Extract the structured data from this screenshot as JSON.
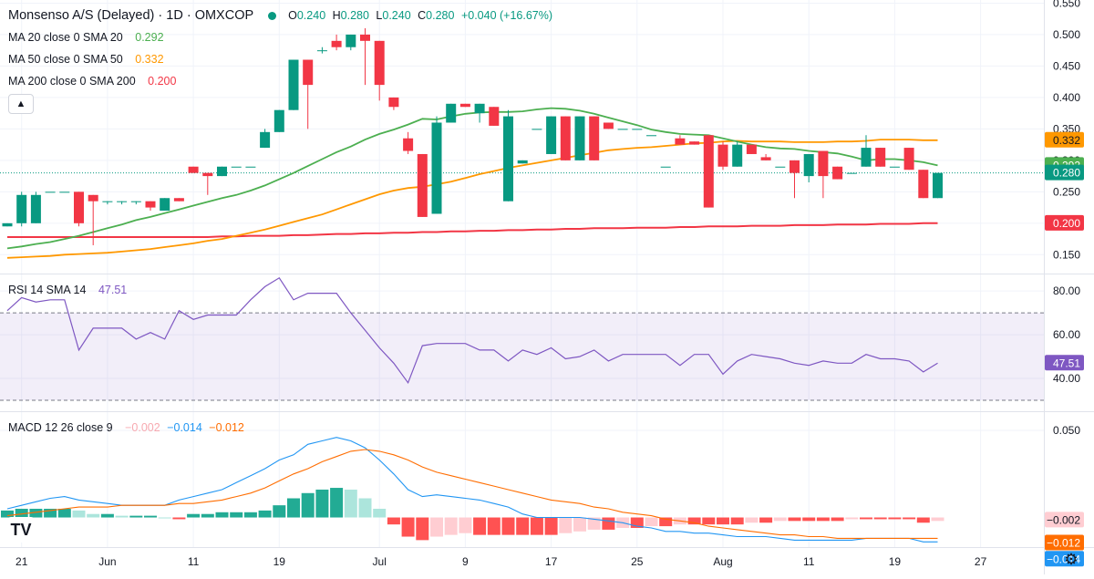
{
  "symbol": {
    "title": "Monsenso A/S (Delayed) · 1D · OMXCOP",
    "status_color": "#089981",
    "o_label": "O",
    "o": "0.240",
    "h_label": "H",
    "h": "0.280",
    "l_label": "L",
    "l": "0.240",
    "c_label": "C",
    "c": "0.280",
    "change": "+0.040 (+16.67%)"
  },
  "ma_legend": [
    {
      "label": "MA 20 close 0 SMA 20",
      "value": "0.292",
      "color": "#4caf50"
    },
    {
      "label": "MA 50 close 0 SMA 50",
      "value": "0.332",
      "color": "#ff9800"
    },
    {
      "label": "MA 200 close 0 SMA 200",
      "value": "0.200",
      "color": "#f23645"
    }
  ],
  "rsi_legend": {
    "label": "RSI 14 SMA 14",
    "value": "47.51",
    "color": "#7e57c2"
  },
  "macd_legend": {
    "label": "MACD 12 26 close 9",
    "hist": "−0.002",
    "macd": "−0.014",
    "signal": "−0.012",
    "hist_color": "#f7a9b0",
    "macd_color": "#2196f3",
    "signal_color": "#ff6d00"
  },
  "collapse_icon": "chevron-up-icon",
  "logo_text": "TV",
  "settings_icon": "gear-icon",
  "colors": {
    "up": "#089981",
    "down": "#f23645",
    "ma20": "#4caf50",
    "ma50": "#ff9800",
    "ma200": "#f23645",
    "rsi": "#7e57c2",
    "macd": "#2196f3",
    "signal": "#ff6d00",
    "hist_up_strong": "#22ab94",
    "hist_up_weak": "#ace5dc",
    "hist_down_strong": "#ff5252",
    "hist_down_weak": "#ffcdd2"
  },
  "chart_data": {
    "type": "candlestick",
    "x_ticks": [
      {
        "i": 1,
        "label": "21"
      },
      {
        "i": 7,
        "label": "Jun"
      },
      {
        "i": 13,
        "label": "11"
      },
      {
        "i": 19,
        "label": "19"
      },
      {
        "i": 26,
        "label": "Jul"
      },
      {
        "i": 32,
        "label": "9"
      },
      {
        "i": 38,
        "label": "17"
      },
      {
        "i": 44,
        "label": "25"
      },
      {
        "i": 50,
        "label": "Aug"
      },
      {
        "i": 56,
        "label": "11"
      },
      {
        "i": 62,
        "label": "19"
      },
      {
        "i": 68,
        "label": "27"
      }
    ],
    "price_axis": {
      "ticks": [
        "0.550",
        "0.500",
        "0.450",
        "0.400",
        "0.350",
        "0.300",
        "0.250",
        "0.200",
        "0.150"
      ],
      "min": 0.12,
      "max": 0.555
    },
    "candles": [
      [
        0.195,
        0.2,
        0.195,
        0.2
      ],
      [
        0.2,
        0.25,
        0.195,
        0.245
      ],
      [
        0.2,
        0.25,
        0.2,
        0.245
      ],
      [
        0.25,
        0.25,
        0.25,
        0.25
      ],
      [
        0.25,
        0.25,
        0.25,
        0.25
      ],
      [
        0.25,
        0.25,
        0.195,
        0.2
      ],
      [
        0.245,
        0.245,
        0.165,
        0.235
      ],
      [
        0.235,
        0.235,
        0.23,
        0.235
      ],
      [
        0.235,
        0.235,
        0.23,
        0.235
      ],
      [
        0.235,
        0.235,
        0.23,
        0.235
      ],
      [
        0.235,
        0.235,
        0.22,
        0.225
      ],
      [
        0.22,
        0.24,
        0.22,
        0.24
      ],
      [
        0.24,
        0.24,
        0.235,
        0.235
      ],
      [
        0.29,
        0.29,
        0.28,
        0.28
      ],
      [
        0.28,
        0.28,
        0.245,
        0.275
      ],
      [
        0.275,
        0.29,
        0.275,
        0.29
      ],
      [
        0.29,
        0.29,
        0.29,
        0.29
      ],
      [
        0.29,
        0.29,
        0.29,
        0.29
      ],
      [
        0.32,
        0.35,
        0.32,
        0.345
      ],
      [
        0.345,
        0.38,
        0.345,
        0.38
      ],
      [
        0.38,
        0.46,
        0.38,
        0.46
      ],
      [
        0.46,
        0.46,
        0.35,
        0.42
      ],
      [
        0.475,
        0.48,
        0.47,
        0.475
      ],
      [
        0.49,
        0.5,
        0.475,
        0.48
      ],
      [
        0.48,
        0.5,
        0.475,
        0.5
      ],
      [
        0.5,
        0.51,
        0.42,
        0.49
      ],
      [
        0.49,
        0.49,
        0.395,
        0.42
      ],
      [
        0.4,
        0.4,
        0.38,
        0.385
      ],
      [
        0.335,
        0.345,
        0.31,
        0.315
      ],
      [
        0.31,
        0.31,
        0.21,
        0.21
      ],
      [
        0.215,
        0.37,
        0.215,
        0.36
      ],
      [
        0.36,
        0.39,
        0.36,
        0.39
      ],
      [
        0.39,
        0.39,
        0.385,
        0.385
      ],
      [
        0.375,
        0.39,
        0.36,
        0.39
      ],
      [
        0.385,
        0.385,
        0.355,
        0.355
      ],
      [
        0.235,
        0.38,
        0.235,
        0.37
      ],
      [
        0.295,
        0.3,
        0.295,
        0.3
      ],
      [
        0.35,
        0.35,
        0.35,
        0.35
      ],
      [
        0.31,
        0.37,
        0.31,
        0.37
      ],
      [
        0.37,
        0.37,
        0.3,
        0.3
      ],
      [
        0.3,
        0.37,
        0.3,
        0.37
      ],
      [
        0.37,
        0.37,
        0.3,
        0.3
      ],
      [
        0.36,
        0.36,
        0.35,
        0.35
      ],
      [
        0.35,
        0.35,
        0.35,
        0.35
      ],
      [
        0.35,
        0.35,
        0.35,
        0.35
      ],
      [
        0.34,
        0.34,
        0.34,
        0.34
      ],
      [
        0.29,
        0.29,
        0.29,
        0.29
      ],
      [
        0.335,
        0.34,
        0.325,
        0.325
      ],
      [
        0.33,
        0.33,
        0.325,
        0.325
      ],
      [
        0.34,
        0.34,
        0.225,
        0.225
      ],
      [
        0.325,
        0.33,
        0.285,
        0.29
      ],
      [
        0.29,
        0.33,
        0.29,
        0.325
      ],
      [
        0.325,
        0.325,
        0.31,
        0.31
      ],
      [
        0.305,
        0.31,
        0.3,
        0.3
      ],
      [
        0.29,
        0.29,
        0.29,
        0.29
      ],
      [
        0.3,
        0.3,
        0.24,
        0.28
      ],
      [
        0.275,
        0.31,
        0.265,
        0.31
      ],
      [
        0.315,
        0.315,
        0.24,
        0.275
      ],
      [
        0.29,
        0.29,
        0.27,
        0.27
      ],
      [
        0.28,
        0.28,
        0.28,
        0.28
      ],
      [
        0.29,
        0.34,
        0.29,
        0.32
      ],
      [
        0.32,
        0.32,
        0.29,
        0.29
      ],
      [
        0.29,
        0.29,
        0.29,
        0.29
      ],
      [
        0.32,
        0.32,
        0.285,
        0.285
      ],
      [
        0.285,
        0.285,
        0.24,
        0.24
      ],
      [
        0.24,
        0.28,
        0.24,
        0.28
      ]
    ],
    "ma20": [
      0.16,
      0.163,
      0.167,
      0.17,
      0.175,
      0.18,
      0.186,
      0.192,
      0.198,
      0.205,
      0.21,
      0.216,
      0.222,
      0.228,
      0.234,
      0.24,
      0.245,
      0.252,
      0.26,
      0.27,
      0.28,
      0.291,
      0.302,
      0.313,
      0.322,
      0.333,
      0.342,
      0.349,
      0.357,
      0.366,
      0.365,
      0.37,
      0.374,
      0.376,
      0.377,
      0.377,
      0.378,
      0.381,
      0.383,
      0.382,
      0.379,
      0.374,
      0.368,
      0.362,
      0.356,
      0.349,
      0.345,
      0.342,
      0.341,
      0.34,
      0.335,
      0.33,
      0.325,
      0.321,
      0.319,
      0.318,
      0.315,
      0.313,
      0.311,
      0.306,
      0.3,
      0.302,
      0.302,
      0.3,
      0.297,
      0.292
    ],
    "ma50": [
      0.145,
      0.146,
      0.147,
      0.148,
      0.15,
      0.151,
      0.152,
      0.153,
      0.155,
      0.157,
      0.159,
      0.162,
      0.165,
      0.168,
      0.172,
      0.175,
      0.18,
      0.185,
      0.19,
      0.196,
      0.202,
      0.208,
      0.214,
      0.222,
      0.23,
      0.238,
      0.246,
      0.252,
      0.256,
      0.258,
      0.262,
      0.266,
      0.272,
      0.278,
      0.283,
      0.288,
      0.292,
      0.296,
      0.3,
      0.304,
      0.308,
      0.312,
      0.316,
      0.318,
      0.32,
      0.321,
      0.323,
      0.325,
      0.327,
      0.328,
      0.33,
      0.331,
      0.33,
      0.33,
      0.33,
      0.329,
      0.329,
      0.329,
      0.33,
      0.33,
      0.331,
      0.333,
      0.333,
      0.333,
      0.332,
      0.332
    ],
    "ma200": [
      0.178,
      0.178,
      0.178,
      0.178,
      0.178,
      0.178,
      0.178,
      0.178,
      0.178,
      0.178,
      0.178,
      0.178,
      0.178,
      0.178,
      0.178,
      0.179,
      0.179,
      0.18,
      0.18,
      0.18,
      0.181,
      0.181,
      0.182,
      0.183,
      0.183,
      0.184,
      0.184,
      0.185,
      0.185,
      0.186,
      0.186,
      0.187,
      0.187,
      0.188,
      0.188,
      0.189,
      0.189,
      0.19,
      0.19,
      0.191,
      0.191,
      0.192,
      0.192,
      0.192,
      0.193,
      0.193,
      0.193,
      0.194,
      0.194,
      0.195,
      0.195,
      0.195,
      0.196,
      0.196,
      0.196,
      0.197,
      0.197,
      0.197,
      0.198,
      0.198,
      0.198,
      0.199,
      0.199,
      0.199,
      0.2,
      0.2
    ],
    "rsi_axis": {
      "ticks": [
        "80.00",
        "60.00",
        "40.00"
      ],
      "min": 25,
      "max": 88,
      "upper": 70,
      "lower": 30
    },
    "rsi": [
      71,
      77,
      75,
      76,
      76,
      53,
      63,
      63,
      63,
      58,
      61,
      58,
      71,
      67,
      69,
      69,
      69,
      76,
      82,
      86,
      76,
      79,
      79,
      79,
      70,
      62,
      54,
      47,
      38,
      55,
      56,
      56,
      56,
      53,
      53,
      48,
      53,
      51,
      54,
      49,
      50,
      53,
      48,
      51,
      51,
      51,
      51,
      46,
      51,
      51,
      42,
      48,
      51,
      50,
      49,
      47,
      46,
      48,
      47,
      47,
      51,
      49,
      49,
      48,
      43,
      47
    ],
    "macd_axis": {
      "ticks": [
        "0.050"
      ],
      "min": -0.017,
      "max": 0.061
    },
    "macd": [
      0.005,
      0.007,
      0.009,
      0.011,
      0.012,
      0.01,
      0.009,
      0.008,
      0.007,
      0.007,
      0.007,
      0.007,
      0.01,
      0.012,
      0.014,
      0.016,
      0.02,
      0.024,
      0.028,
      0.033,
      0.036,
      0.042,
      0.044,
      0.046,
      0.044,
      0.04,
      0.033,
      0.025,
      0.016,
      0.012,
      0.013,
      0.012,
      0.011,
      0.01,
      0.008,
      0.006,
      0.002,
      0.0,
      0.0,
      0.0,
      0.0,
      -0.001,
      -0.002,
      -0.003,
      -0.005,
      -0.006,
      -0.008,
      -0.008,
      -0.009,
      -0.009,
      -0.01,
      -0.011,
      -0.011,
      -0.011,
      -0.012,
      -0.013,
      -0.013,
      -0.013,
      -0.013,
      -0.013,
      -0.012,
      -0.012,
      -0.012,
      -0.012,
      -0.014,
      -0.014
    ],
    "signal": [
      0.001,
      0.002,
      0.003,
      0.004,
      0.005,
      0.006,
      0.006,
      0.006,
      0.007,
      0.007,
      0.007,
      0.007,
      0.008,
      0.008,
      0.009,
      0.01,
      0.012,
      0.014,
      0.017,
      0.021,
      0.025,
      0.028,
      0.032,
      0.035,
      0.038,
      0.039,
      0.038,
      0.036,
      0.033,
      0.029,
      0.026,
      0.024,
      0.022,
      0.02,
      0.018,
      0.016,
      0.014,
      0.012,
      0.01,
      0.009,
      0.008,
      0.006,
      0.005,
      0.003,
      0.002,
      0.001,
      -0.001,
      -0.002,
      -0.003,
      -0.005,
      -0.006,
      -0.007,
      -0.008,
      -0.009,
      -0.01,
      -0.01,
      -0.011,
      -0.011,
      -0.012,
      -0.012,
      -0.012,
      -0.012,
      -0.012,
      -0.012,
      -0.012,
      -0.012
    ],
    "hist": [
      0.004,
      0.005,
      0.005,
      0.005,
      0.005,
      0.004,
      0.002,
      0.002,
      0.001,
      0.001,
      0.001,
      0.0,
      -0.001,
      0.002,
      0.002,
      0.003,
      0.003,
      0.003,
      0.004,
      0.007,
      0.011,
      0.014,
      0.016,
      0.017,
      0.016,
      0.011,
      0.005,
      -0.004,
      -0.011,
      -0.013,
      -0.011,
      -0.01,
      -0.009,
      -0.01,
      -0.01,
      -0.01,
      -0.01,
      -0.01,
      -0.01,
      -0.009,
      -0.008,
      -0.007,
      -0.007,
      -0.006,
      -0.006,
      -0.005,
      -0.005,
      -0.004,
      -0.004,
      -0.004,
      -0.004,
      -0.004,
      -0.003,
      -0.003,
      -0.002,
      -0.002,
      -0.002,
      -0.002,
      -0.002,
      -0.001,
      -0.001,
      -0.001,
      -0.001,
      -0.001,
      -0.003,
      -0.002
    ]
  }
}
